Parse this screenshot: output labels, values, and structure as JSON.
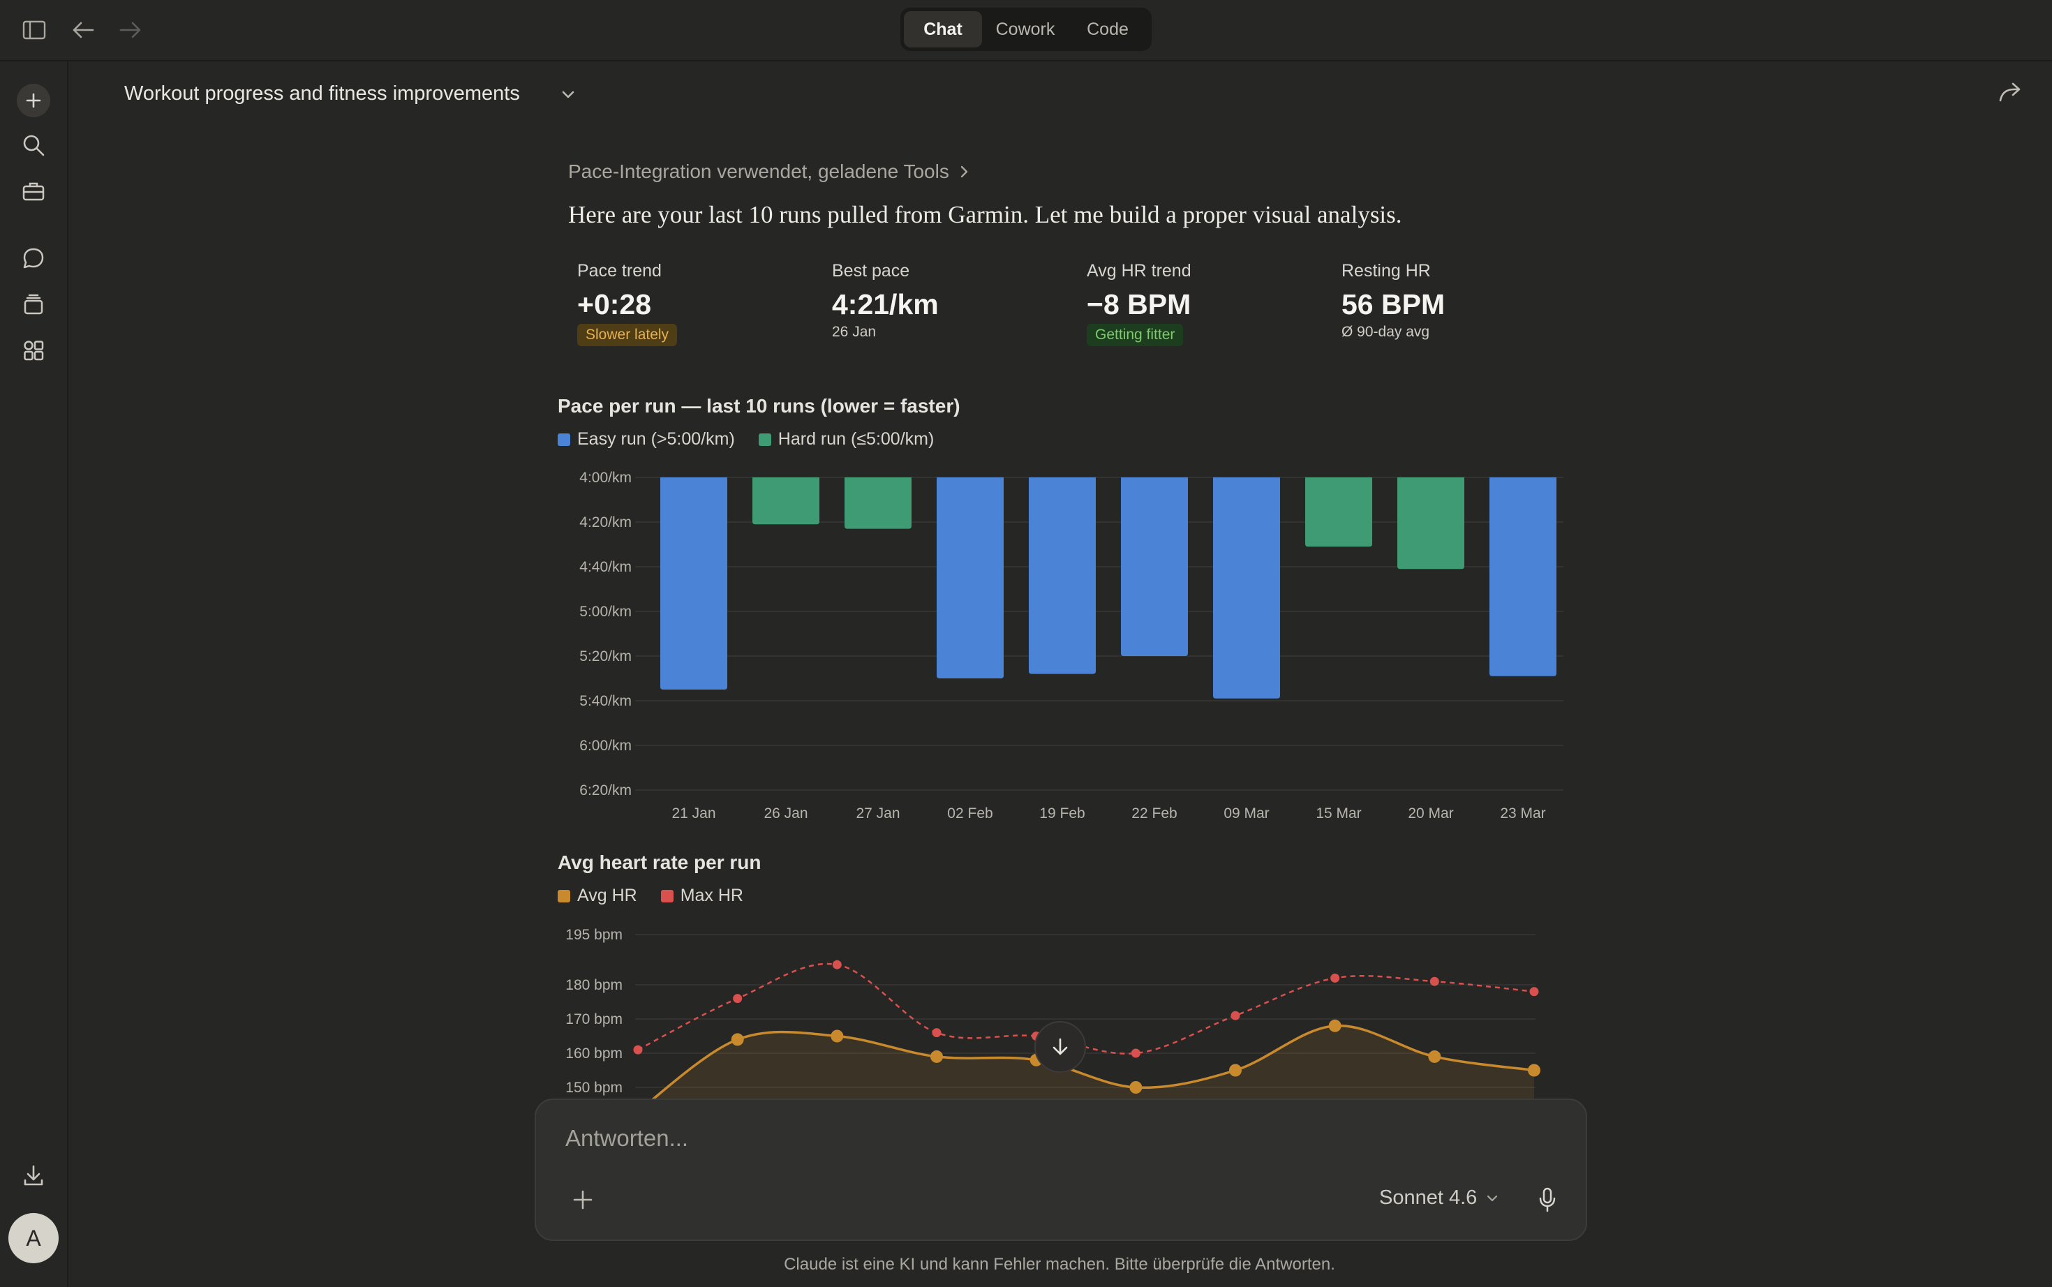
{
  "topbar": {
    "tabs": [
      {
        "label": "Chat",
        "active": true
      },
      {
        "label": "Cowork",
        "active": false
      },
      {
        "label": "Code",
        "active": false
      }
    ],
    "icons": [
      "sidebar-toggle-icon",
      "back-arrow-icon",
      "forward-arrow-icon"
    ]
  },
  "sidebar": {
    "icons": [
      "plus-icon",
      "search-icon",
      "briefcase-icon",
      "chat-bubble-icon",
      "layers-icon",
      "apps-icon",
      "download-icon"
    ],
    "avatar_initial": "A"
  },
  "conversation": {
    "title": "Workout progress and fitness improvements"
  },
  "message": {
    "tool_line": "Pace-Integration verwendet, geladene Tools",
    "text": "Here are your last 10 runs pulled from Garmin. Let me build a proper visual analysis."
  },
  "stats": [
    {
      "label": "Pace trend",
      "value": "+0:28",
      "badge": "Slower lately",
      "badge_kind": "warn"
    },
    {
      "label": "Best pace",
      "value": "4:21/km",
      "sub": "26 Jan"
    },
    {
      "label": "Avg HR trend",
      "value": "−8 BPM",
      "badge": "Getting fitter",
      "badge_kind": "ok"
    },
    {
      "label": "Resting HR",
      "value": "56 BPM",
      "sub": "Ø 90-day avg"
    }
  ],
  "chart_data": [
    {
      "type": "bar",
      "title": "Pace per run — last 10 runs (lower = faster)",
      "legend": [
        {
          "name": "Easy run (>5:00/km)",
          "color": "#4b84d6"
        },
        {
          "name": "Hard run (≤5:00/km)",
          "color": "#3f9b74"
        }
      ],
      "categories": [
        "21 Jan",
        "26 Jan",
        "27 Jan",
        "02 Feb",
        "19 Feb",
        "22 Feb",
        "09 Mar",
        "15 Mar",
        "20 Mar",
        "23 Mar"
      ],
      "values_sec_per_km": [
        335,
        261,
        263,
        330,
        328,
        320,
        339,
        271,
        281,
        329
      ],
      "values_label": [
        "5:35",
        "4:21",
        "4:23",
        "5:30",
        "5:28",
        "5:20",
        "5:39",
        "4:31",
        "4:41",
        "5:29"
      ],
      "kinds": [
        "easy",
        "hard",
        "hard",
        "easy",
        "easy",
        "easy",
        "easy",
        "hard",
        "hard",
        "easy"
      ],
      "y_ticks": [
        "4:00/km",
        "4:20/km",
        "4:40/km",
        "5:00/km",
        "5:20/km",
        "5:40/km",
        "6:00/km",
        "6:20/km"
      ],
      "y_tick_sec": [
        240,
        260,
        280,
        300,
        320,
        340,
        360,
        380
      ],
      "ylim_sec": [
        240,
        380
      ],
      "grid": true
    },
    {
      "type": "line",
      "title": "Avg heart rate per run",
      "legend": [
        {
          "name": "Avg HR",
          "color": "#c98a2e"
        },
        {
          "name": "Max HR",
          "color": "#d9514e"
        }
      ],
      "series": [
        {
          "name": "Avg HR",
          "values": [
            143,
            164,
            165,
            159,
            158,
            150,
            155,
            168,
            159,
            155
          ]
        },
        {
          "name": "Max HR",
          "values": [
            161,
            176,
            186,
            166,
            165,
            160,
            171,
            182,
            181,
            178
          ]
        }
      ],
      "y_ticks": [
        "195 bpm",
        "180 bpm",
        "170 bpm",
        "160 bpm",
        "150 bpm"
      ],
      "y_tick_values": [
        195,
        180,
        170,
        160,
        150
      ],
      "grid": true
    }
  ],
  "composer": {
    "placeholder": "Antworten...",
    "model": "Sonnet 4.6"
  },
  "disclaimer": "Claude ist eine KI und kann Fehler machen. Bitte überprüfe die Antworten."
}
